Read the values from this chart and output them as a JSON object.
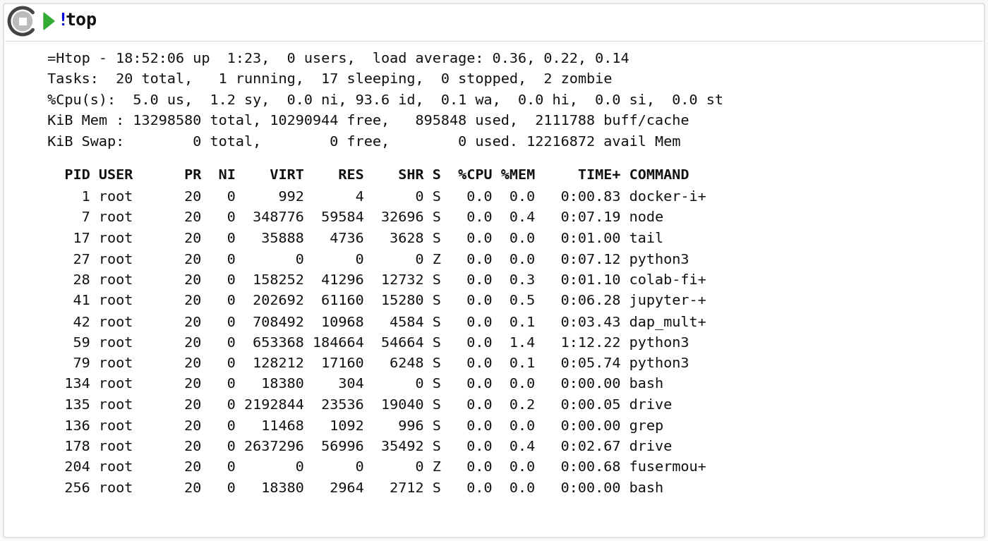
{
  "background_color": "#f8f8f8",
  "panel_color": "#ffffff",
  "border_color": "#dddddd",
  "header_arrow_color": "#33aa33",
  "header_exclaim_color": "#0000dd",
  "header_text_color": "#111111",
  "font_family": "DejaVu Sans Mono",
  "title_fontsize": 17,
  "body_fontsize": 14.5,
  "summary_lines": [
    " =Htop - 18:52:06 up  1:23,  0 users,  load average: 0.36, 0.22, 0.14",
    " Tasks:  20 total,   1 running,  17 sleeping,  0 stopped,  2 zombie",
    " %Cpu(s):  5.0 us,  1.2 sy,  0.0 ni, 93.6 id,  0.1 wa,  0.0 hi,  0.0 si,  0.0 st",
    " KiB Mem : 13298580 total, 10290944 free,   895848 used,  2111788 buff/cache",
    " KiB Swap:        0 total,        0 free,        0 used. 12216872 avail Mem"
  ],
  "table_header": "   PID USER      PR  NI    VIRT    RES    SHR S  %CPU %MEM     TIME+ COMMAND",
  "table_rows": [
    "     1 root      20   0     992      4      0 S   0.0  0.0   0:00.83 docker-i+",
    "     7 root      20   0  348776  59584  32696 S   0.0  0.4   0:07.19 node",
    "    17 root      20   0   35888   4736   3628 S   0.0  0.0   0:01.00 tail",
    "    27 root      20   0       0      0      0 Z   0.0  0.0   0:07.12 python3",
    "    28 root      20   0  158252  41296  12732 S   0.0  0.3   0:01.10 colab-fi+",
    "    41 root      20   0  202692  61160  15280 S   0.0  0.5   0:06.28 jupyter-+",
    "    42 root      20   0  708492  10968   4584 S   0.0  0.1   0:03.43 dap_mult+",
    "    59 root      20   0  653368 184664  54664 S   0.0  1.4   1:12.22 python3",
    "    79 root      20   0  128212  17160   6248 S   0.0  0.1   0:05.74 python3",
    "   134 root      20   0   18380    304      0 S   0.0  0.0   0:00.00 bash",
    "   135 root      20   0 2192844  23536  19040 S   0.0  0.2   0:00.05 drive",
    "   136 root      20   0   11468   1092    996 S   0.0  0.0   0:00.00 grep",
    "   178 root      20   0 2637296  56996  35492 S   0.0  0.4   0:02.67 drive",
    "   204 root      20   0       0      0      0 Z   0.0  0.0   0:00.68 fusermou+",
    "   256 root      20   0   18380   2964   2712 S   0.0  0.0   0:00.00 bash"
  ]
}
